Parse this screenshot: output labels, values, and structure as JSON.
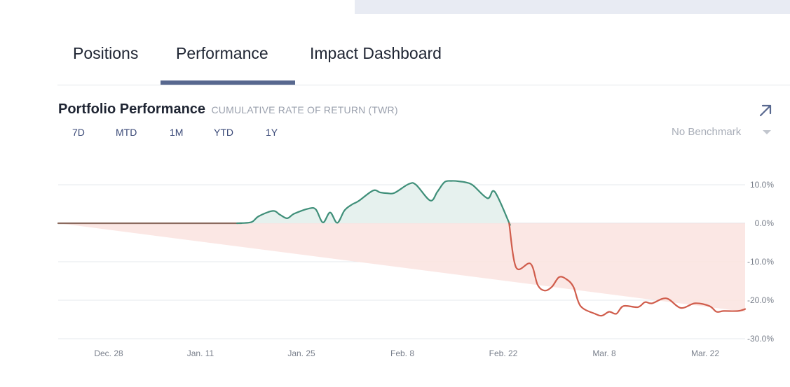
{
  "tabs": [
    {
      "label": "Positions",
      "active": false
    },
    {
      "label": "Performance",
      "active": true
    },
    {
      "label": "Impact Dashboard",
      "active": false
    }
  ],
  "section": {
    "title": "Portfolio Performance",
    "subtitle": "CUMULATIVE RATE OF RETURN (TWR)",
    "expand_icon": "arrow-up-right-icon"
  },
  "time_ranges": [
    "7D",
    "MTD",
    "1M",
    "YTD",
    "1Y"
  ],
  "benchmark": {
    "selected": "No Benchmark",
    "icon": "caret-down-icon"
  },
  "colors": {
    "accent": "#58688f",
    "positive": "#3f8f79",
    "positive_fill": "#e6f1ee",
    "negative": "#d05d4c",
    "negative_fill": "#fae3df",
    "flat": "#8b6a5e"
  },
  "chart_data": {
    "type": "area",
    "title": "Portfolio Performance",
    "subtitle": "CUMULATIVE RATE OF RETURN (TWR)",
    "xlabel": "",
    "ylabel": "",
    "x_ticks": [
      "Dec. 28",
      "Jan. 11",
      "Jan. 25",
      "Feb. 8",
      "Feb. 22",
      "Mar. 8",
      "Mar. 22"
    ],
    "y_ticks": [
      "10.0%",
      "0.0%",
      "-10.0%",
      "-20.0%",
      "-30.0%"
    ],
    "y_tick_values": [
      10,
      0,
      -10,
      -20,
      -30
    ],
    "ylim": [
      -30,
      10
    ],
    "x_days_range": [
      -7,
      89
    ],
    "grid": true,
    "legend": "none",
    "series": [
      {
        "x": [
          -7,
          2,
          10,
          18,
          20,
          21,
          23,
          24,
          25,
          26,
          28,
          29,
          30,
          31,
          32,
          33,
          34,
          35,
          37,
          38,
          39,
          40,
          42,
          43,
          45,
          46,
          47,
          48,
          49,
          50,
          51,
          53,
          54,
          56,
          57,
          59,
          60,
          61,
          62,
          63,
          64,
          65,
          66,
          68,
          69,
          70,
          71,
          72,
          74,
          75,
          76,
          78,
          80,
          82,
          84,
          85,
          86,
          88,
          89
        ],
        "y": [
          0,
          0,
          0,
          0,
          0.3,
          1.8,
          3.2,
          2.2,
          1.3,
          2.5,
          3.8,
          3.6,
          0.2,
          2.8,
          0.1,
          3.3,
          4.8,
          5.8,
          8.5,
          8.0,
          7.8,
          7.9,
          10.2,
          10.0,
          5.9,
          8.2,
          10.7,
          11.0,
          10.9,
          10.6,
          9.8,
          6.5,
          8.2,
          0.2,
          -11.5,
          -10.5,
          -16.0,
          -17.5,
          -16.5,
          -14.0,
          -14.5,
          -16.5,
          -21.5,
          -23.5,
          -24.0,
          -23.0,
          -23.5,
          -21.5,
          -21.8,
          -20.5,
          -20.8,
          -19.5,
          -22.0,
          -20.8,
          -21.5,
          -23.0,
          -22.8,
          -22.8,
          -22.3
        ]
      }
    ],
    "benchmark_area": {
      "x": [
        -7,
        89
      ],
      "y": [
        0,
        -23
      ]
    }
  }
}
